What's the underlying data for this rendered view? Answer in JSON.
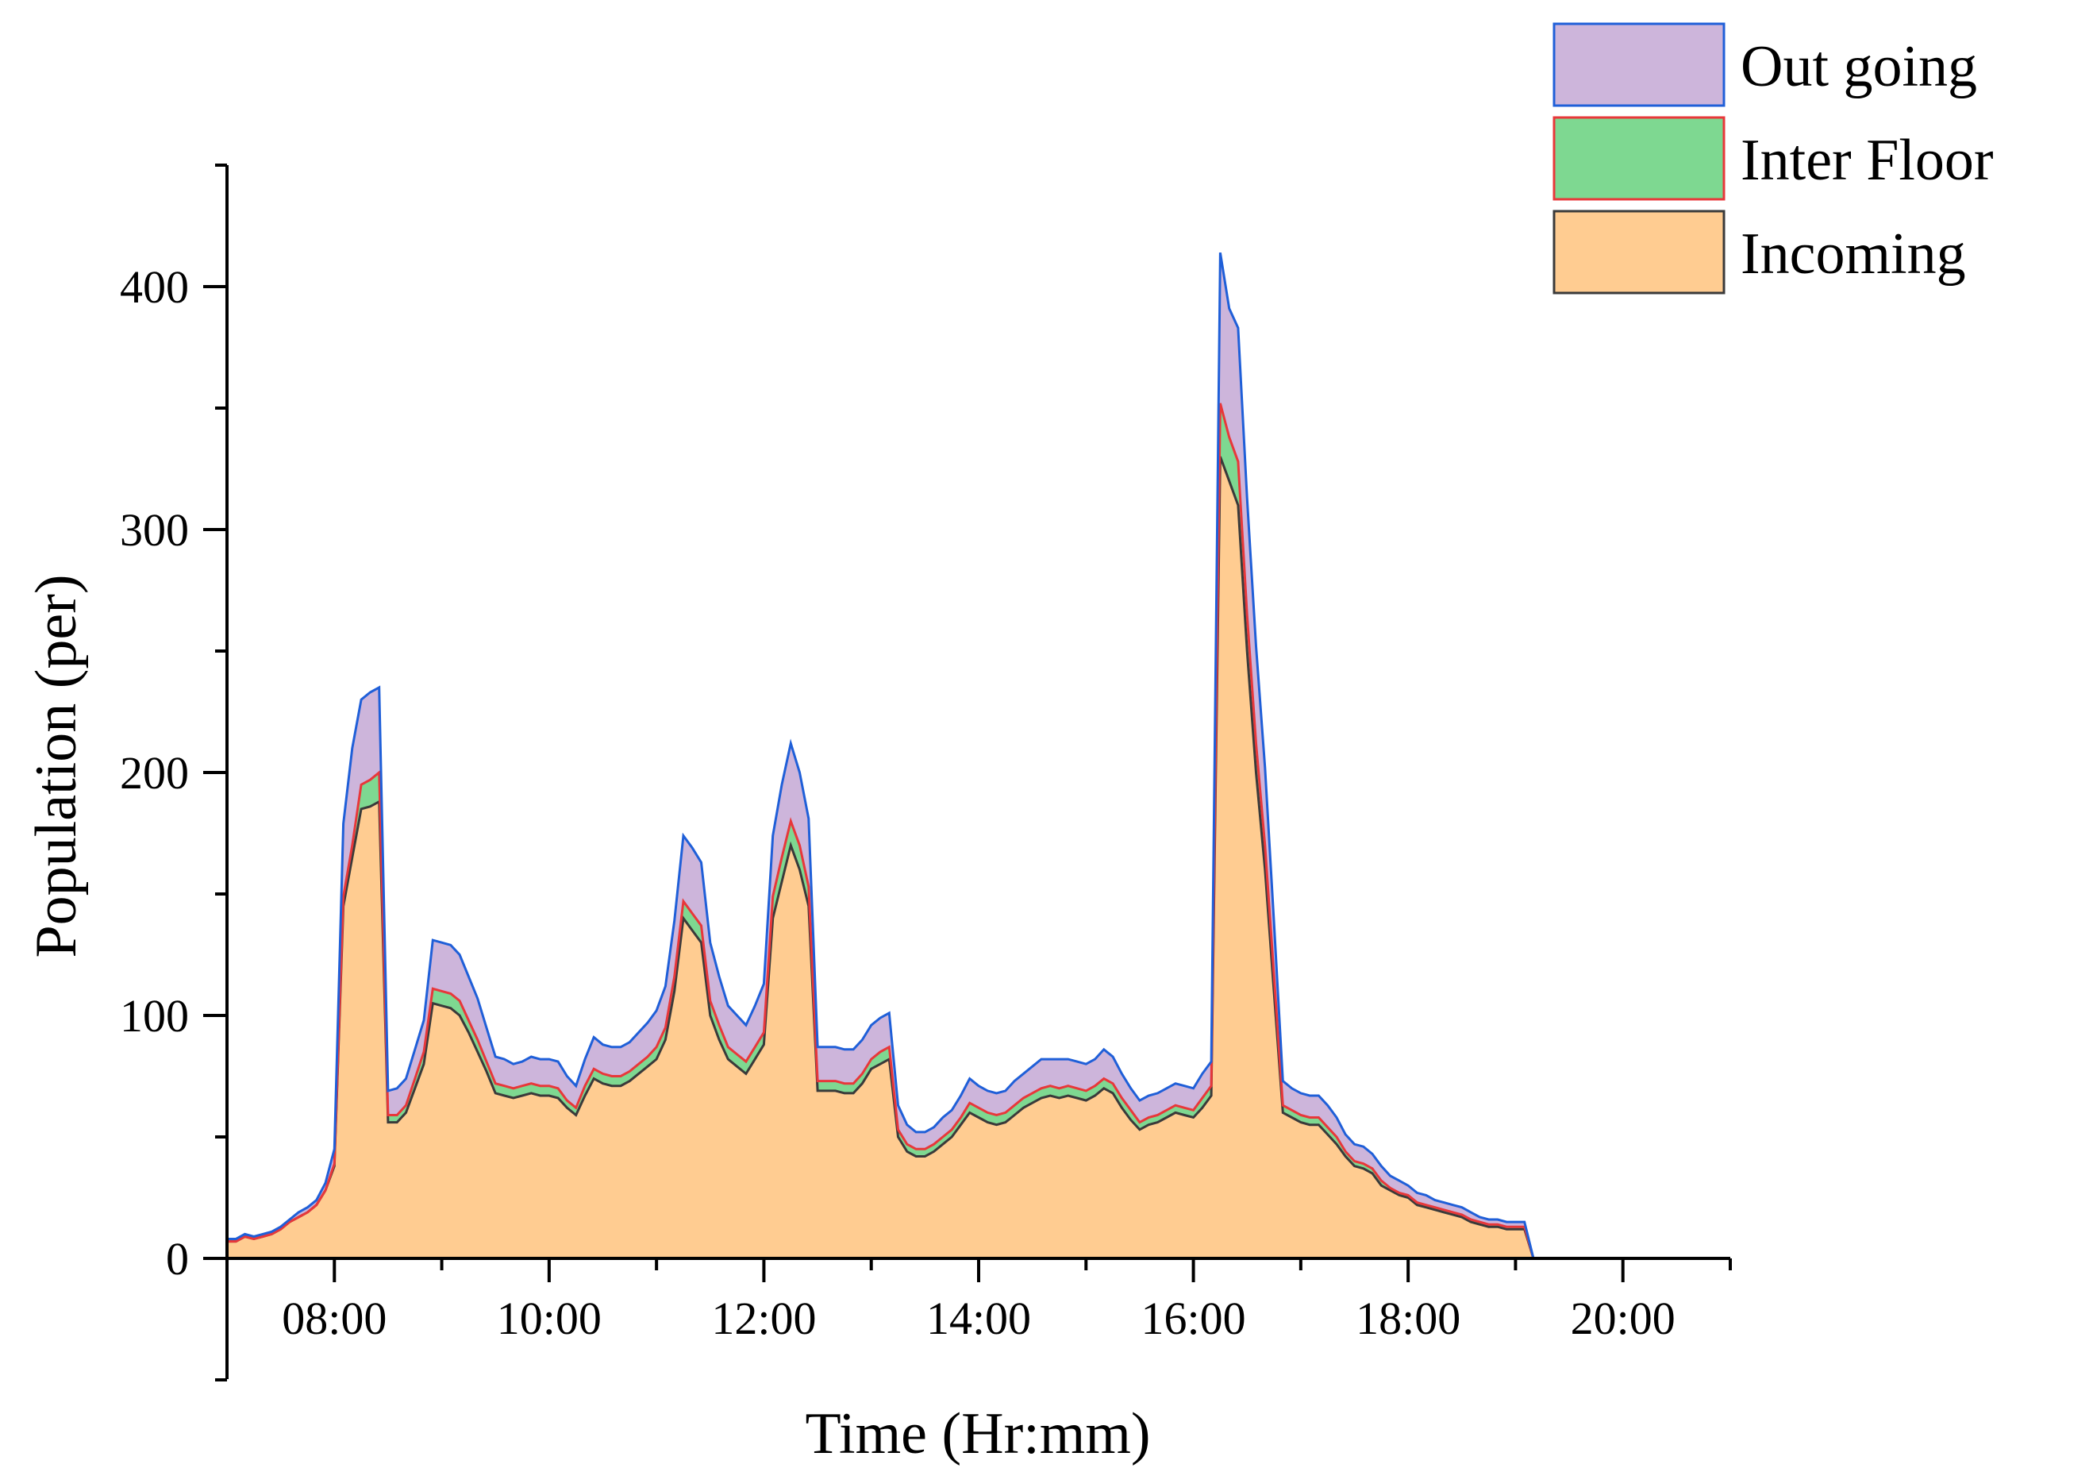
{
  "chart_data": {
    "type": "area",
    "stacked": true,
    "title": "",
    "xlabel": "Time (Hr:mm)",
    "ylabel": "Population (per)",
    "x_start": "07:00",
    "x_step_minutes": 5,
    "xlim": [
      "07:00",
      "21:00"
    ],
    "ylim": [
      0,
      450
    ],
    "x_ticks": [
      "08:00",
      "10:00",
      "12:00",
      "14:00",
      "16:00",
      "18:00",
      "20:00"
    ],
    "y_ticks": [
      0,
      100,
      200,
      300,
      400
    ],
    "grid": false,
    "legend_position": "top-right",
    "series": [
      {
        "name": "Incoming",
        "fill": "#FFCC91",
        "stroke": "#3A3A3A",
        "values": [
          7,
          7,
          9,
          8,
          9,
          10,
          12,
          15,
          17,
          19,
          22,
          28,
          38,
          145,
          165,
          185,
          186,
          188,
          56,
          56,
          60,
          70,
          80,
          105,
          104,
          103,
          100,
          93,
          85,
          77,
          68,
          67,
          66,
          67,
          68,
          67,
          67,
          66,
          62,
          59,
          67,
          74,
          72,
          71,
          71,
          73,
          76,
          79,
          82,
          90,
          110,
          140,
          135,
          130,
          100,
          90,
          82,
          79,
          76,
          82,
          88,
          140,
          155,
          170,
          160,
          145,
          69,
          69,
          69,
          68,
          68,
          72,
          78,
          80,
          82,
          50,
          44,
          42,
          42,
          44,
          47,
          50,
          55,
          60,
          58,
          56,
          55,
          56,
          59,
          62,
          64,
          66,
          67,
          66,
          67,
          66,
          65,
          67,
          70,
          68,
          62,
          57,
          53,
          55,
          56,
          58,
          60,
          59,
          58,
          62,
          67,
          330,
          320,
          310,
          250,
          200,
          160,
          110,
          60,
          58,
          56,
          55,
          55,
          51,
          47,
          42,
          38,
          37,
          35,
          30,
          28,
          26,
          25,
          22,
          21,
          20,
          19,
          18,
          17,
          15,
          14,
          13,
          13,
          12,
          12,
          12,
          0
        ]
      },
      {
        "name": "Inter Floor",
        "fill": "#7ED891",
        "stroke": "#E8373A",
        "values": [
          0,
          0,
          0,
          0,
          0,
          0,
          0,
          0,
          0,
          0,
          0,
          0,
          1,
          4,
          5,
          10,
          11,
          12,
          3,
          3,
          3,
          4,
          5,
          6,
          6,
          6,
          6,
          5,
          5,
          4,
          4,
          4,
          4,
          4,
          4,
          4,
          4,
          4,
          3,
          3,
          4,
          4,
          4,
          4,
          4,
          4,
          4,
          4,
          5,
          5,
          6,
          7,
          7,
          7,
          6,
          6,
          5,
          5,
          5,
          5,
          5,
          9,
          10,
          10,
          10,
          8,
          4,
          4,
          4,
          4,
          4,
          4,
          4,
          5,
          5,
          3,
          3,
          3,
          3,
          3,
          3,
          3,
          3,
          4,
          4,
          4,
          4,
          4,
          4,
          4,
          4,
          4,
          4,
          4,
          4,
          4,
          4,
          4,
          4,
          4,
          4,
          4,
          3,
          3,
          3,
          3,
          3,
          3,
          3,
          4,
          4,
          22,
          18,
          18,
          15,
          12,
          10,
          7,
          3,
          3,
          3,
          3,
          3,
          3,
          3,
          2,
          2,
          2,
          2,
          2,
          1,
          1,
          1,
          1,
          1,
          1,
          1,
          1,
          1,
          1,
          1,
          1,
          1,
          1,
          1,
          1,
          0
        ]
      },
      {
        "name": "Out going",
        "fill": "#CDB5DB",
        "stroke": "#1F5FD8",
        "values": [
          1,
          1,
          1,
          1,
          1,
          1,
          1,
          1,
          2,
          2,
          2,
          3,
          6,
          30,
          40,
          35,
          36,
          35,
          10,
          11,
          11,
          12,
          13,
          20,
          20,
          20,
          19,
          18,
          17,
          14,
          11,
          11,
          10,
          10,
          11,
          11,
          11,
          11,
          10,
          9,
          11,
          13,
          12,
          12,
          12,
          12,
          13,
          14,
          15,
          17,
          23,
          27,
          27,
          26,
          24,
          20,
          17,
          16,
          15,
          17,
          20,
          25,
          30,
          32,
          30,
          28,
          14,
          14,
          14,
          14,
          14,
          14,
          14,
          14,
          14,
          10,
          8,
          7,
          7,
          7,
          8,
          8,
          9,
          10,
          9,
          9,
          9,
          9,
          10,
          10,
          11,
          12,
          11,
          12,
          11,
          11,
          11,
          11,
          12,
          11,
          10,
          9,
          9,
          9,
          9,
          9,
          9,
          9,
          9,
          10,
          10,
          62,
          53,
          55,
          48,
          40,
          32,
          22,
          10,
          9,
          9,
          9,
          9,
          9,
          8,
          7,
          7,
          7,
          6,
          6,
          5,
          5,
          4,
          4,
          4,
          3,
          3,
          3,
          3,
          3,
          2,
          2,
          2,
          2,
          2,
          2,
          0
        ]
      }
    ],
    "legend_order": [
      "Out going",
      "Inter Floor",
      "Incoming"
    ]
  }
}
